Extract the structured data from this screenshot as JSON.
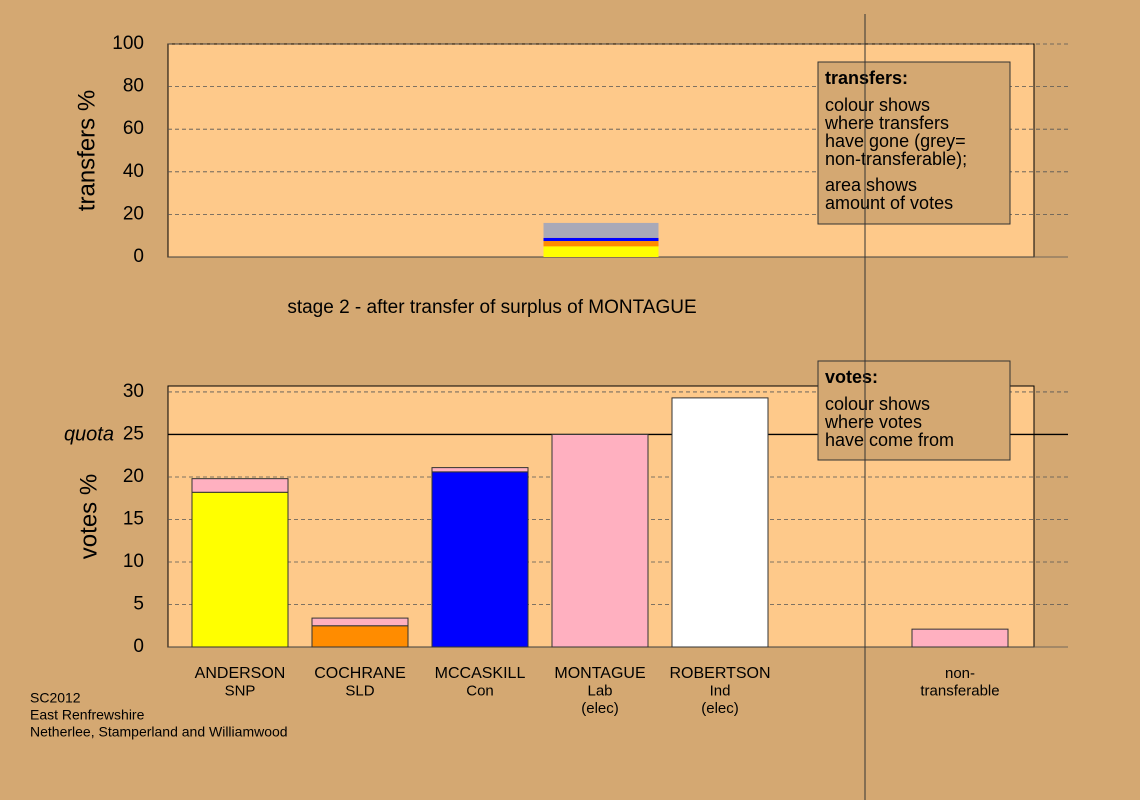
{
  "chart_data": [
    {
      "type": "stacked-bar",
      "ylabel": "transfers %",
      "ylim": [
        0,
        100
      ],
      "yticks": [
        0,
        20,
        40,
        60,
        80,
        100
      ],
      "grid": true,
      "series": [
        {
          "color": "#ffff00",
          "values": [
            5
          ]
        },
        {
          "color": "#ff8c00",
          "values": [
            2.5
          ]
        },
        {
          "color": "#0000ff",
          "values": [
            1.5
          ]
        },
        {
          "color": "#a9a9b8",
          "values": [
            7
          ]
        }
      ],
      "note": {
        "heading": "transfers:",
        "lines": [
          "colour shows",
          "where transfers",
          "have gone (grey=",
          "non-transferable);",
          "area shows",
          "amount of votes"
        ]
      }
    },
    {
      "type": "stacked-bar",
      "title": "stage 2 - after transfer of surplus of MONTAGUE",
      "ylabel": "votes %",
      "ylim": [
        0,
        30.7
      ],
      "yticks": [
        0,
        5,
        10,
        15,
        20,
        25,
        30
      ],
      "grid": true,
      "quota": {
        "value": 25,
        "label": "quota"
      },
      "categories": [
        [
          "ANDERSON",
          "SNP"
        ],
        [
          "COCHRANE",
          "SLD"
        ],
        [
          "MCCASKILL",
          "Con"
        ],
        [
          "MONTAGUE",
          "Lab",
          "(elec)"
        ],
        [
          "ROBERTSON",
          "Ind",
          "(elec)"
        ],
        null,
        [
          "non-",
          "transferable"
        ]
      ],
      "series": [
        {
          "colors": [
            "#ffff00",
            "#ff8c00",
            "#0000ff",
            "#ffb0c0",
            "#ffffff",
            null,
            "#ffb0c0"
          ],
          "values": [
            18.2,
            2.5,
            20.6,
            25,
            29.3,
            null,
            2.1
          ]
        },
        {
          "color": "#ffb0c0",
          "values": [
            1.6,
            0.9,
            0.5,
            null,
            null,
            null,
            null
          ]
        }
      ],
      "note": {
        "heading": "votes:",
        "lines": [
          "colour shows",
          "where votes",
          "have come from"
        ]
      }
    }
  ],
  "source": [
    "SC2012",
    "East Renfrewshire",
    "Netherlee, Stamperland and Williamwood"
  ]
}
